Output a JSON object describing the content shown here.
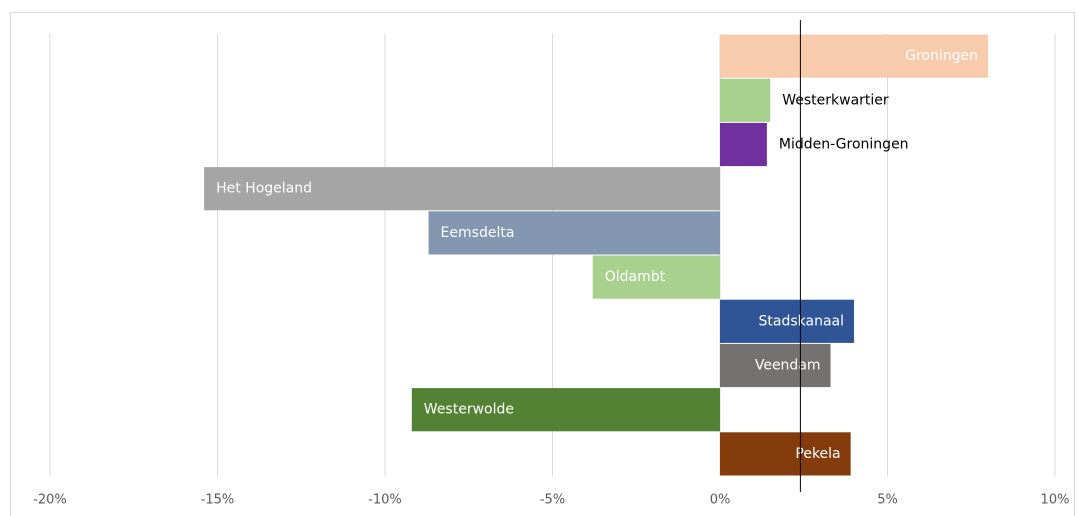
{
  "chart_data": {
    "type": "hbar",
    "categories": [
      "Groningen",
      "Westerkwartier",
      "Midden-Groningen",
      "Het Hogeland",
      "Eemsdelta",
      "Oldambt",
      "Stadskanaal",
      "Veendam",
      "Westerwolde",
      "Pekela"
    ],
    "values": [
      8.0,
      1.5,
      1.4,
      -15.4,
      -8.7,
      -3.8,
      4.0,
      3.3,
      -9.2,
      3.9
    ],
    "colors": [
      "#f8cbad",
      "#a9d18e",
      "#7030a0",
      "#a5a5a5",
      "#8497b0",
      "#a9d18e",
      "#2f5597",
      "#767171",
      "#548235",
      "#843c0c"
    ],
    "xlim": [
      -20,
      10
    ],
    "xticks": [
      {
        "value": -20,
        "label": "-20%"
      },
      {
        "value": -15,
        "label": "-15%"
      },
      {
        "value": -10,
        "label": "-10%"
      },
      {
        "value": -5,
        "label": "-5%"
      },
      {
        "value": 0,
        "label": "0%"
      },
      {
        "value": 5,
        "label": "5%"
      },
      {
        "value": 10,
        "label": "10%"
      }
    ],
    "reference_line": 2.4,
    "grid": true
  }
}
